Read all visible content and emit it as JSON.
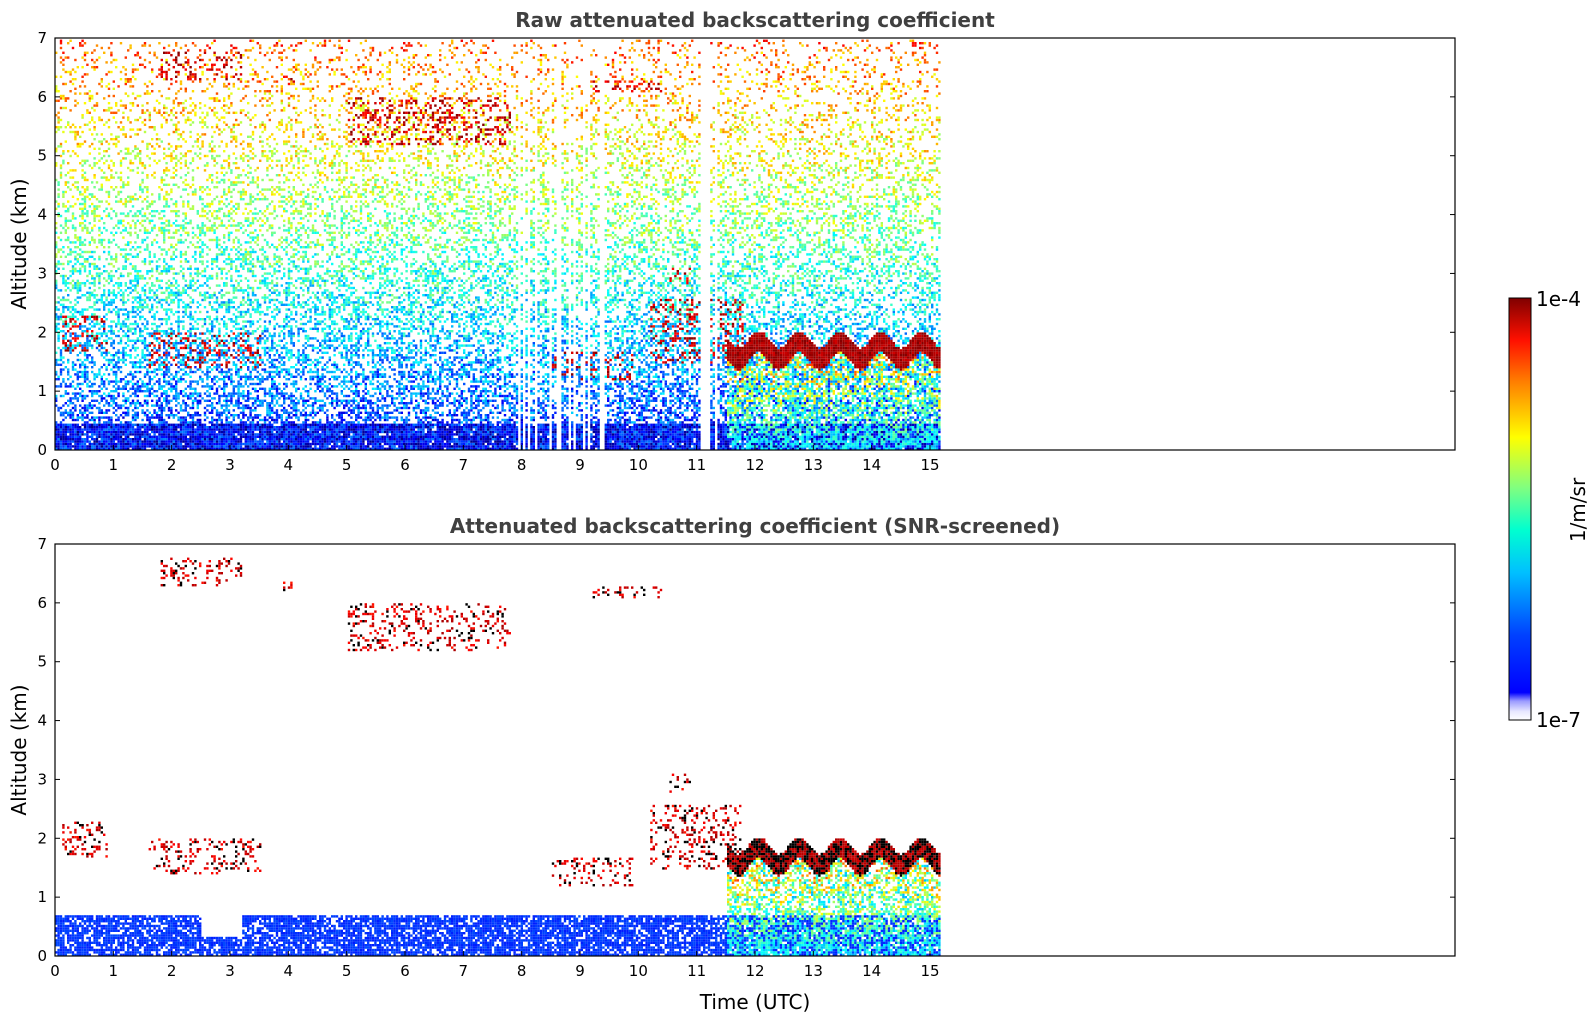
{
  "chart_data": [
    {
      "type": "heatmap",
      "title": "Raw attenuated backscattering coefficient",
      "xlabel": "",
      "ylabel": "Altitude (km)",
      "xlim": [
        0,
        24
      ],
      "ylim": [
        0,
        7
      ],
      "x_ticks": [
        "0",
        "1",
        "2",
        "3",
        "4",
        "5",
        "6",
        "7",
        "8",
        "9",
        "10",
        "11",
        "12",
        "13",
        "14",
        "15"
      ],
      "y_ticks": [
        "0",
        "1",
        "2",
        "3",
        "4",
        "5",
        "6",
        "7"
      ],
      "data_end_time": 15.15,
      "screened": false,
      "features": [
        {
          "kind": "near-surface aerosol",
          "t": [
            0,
            15.15
          ],
          "alt": [
            0,
            1.5
          ]
        },
        {
          "kind": "cloud",
          "t": [
            0.1,
            0.9
          ],
          "alt": [
            1.7,
            2.3
          ]
        },
        {
          "kind": "cloud",
          "t": [
            1.6,
            3.5
          ],
          "alt": [
            1.4,
            2.0
          ]
        },
        {
          "kind": "cloud",
          "t": [
            1.8,
            3.2
          ],
          "alt": [
            6.3,
            6.8
          ]
        },
        {
          "kind": "cloud",
          "t": [
            3.9,
            4.1
          ],
          "alt": [
            6.2,
            6.4
          ]
        },
        {
          "kind": "cloud",
          "t": [
            5.0,
            7.8
          ],
          "alt": [
            5.2,
            6.0
          ]
        },
        {
          "kind": "cloud",
          "t": [
            8.5,
            9.9
          ],
          "alt": [
            1.2,
            1.7
          ]
        },
        {
          "kind": "cloud",
          "t": [
            9.2,
            10.4
          ],
          "alt": [
            6.1,
            6.3
          ]
        },
        {
          "kind": "cloud",
          "t": [
            10.5,
            10.9
          ],
          "alt": [
            2.8,
            3.1
          ]
        },
        {
          "kind": "cloud",
          "t": [
            10.2,
            11.8
          ],
          "alt": [
            1.5,
            2.6
          ]
        },
        {
          "kind": "boundary-layer cloud",
          "t": [
            11.5,
            15.15
          ],
          "alt": [
            0,
            2.0
          ]
        }
      ]
    },
    {
      "type": "heatmap",
      "title": "Attenuated backscattering coefficient (SNR-screened)",
      "xlabel": "Time (UTC)",
      "ylabel": "Altitude (km)",
      "xlim": [
        0,
        24
      ],
      "ylim": [
        0,
        7
      ],
      "x_ticks": [
        "0",
        "1",
        "2",
        "3",
        "4",
        "5",
        "6",
        "7",
        "8",
        "9",
        "10",
        "11",
        "12",
        "13",
        "14",
        "15"
      ],
      "y_ticks": [
        "0",
        "1",
        "2",
        "3",
        "4",
        "5",
        "6",
        "7"
      ],
      "data_end_time": 15.15,
      "screened": true
    }
  ],
  "colorbar": {
    "label": "1/m/sr",
    "max_label": "1e-4",
    "min_label": "1e-7",
    "scale": "log",
    "range": [
      1e-07,
      0.0001
    ],
    "colormap": "jet",
    "colors": [
      "#ffffff",
      "#dcdcff",
      "#0000ff",
      "#00ffff",
      "#ffff00",
      "#ff0000",
      "#800000"
    ]
  }
}
